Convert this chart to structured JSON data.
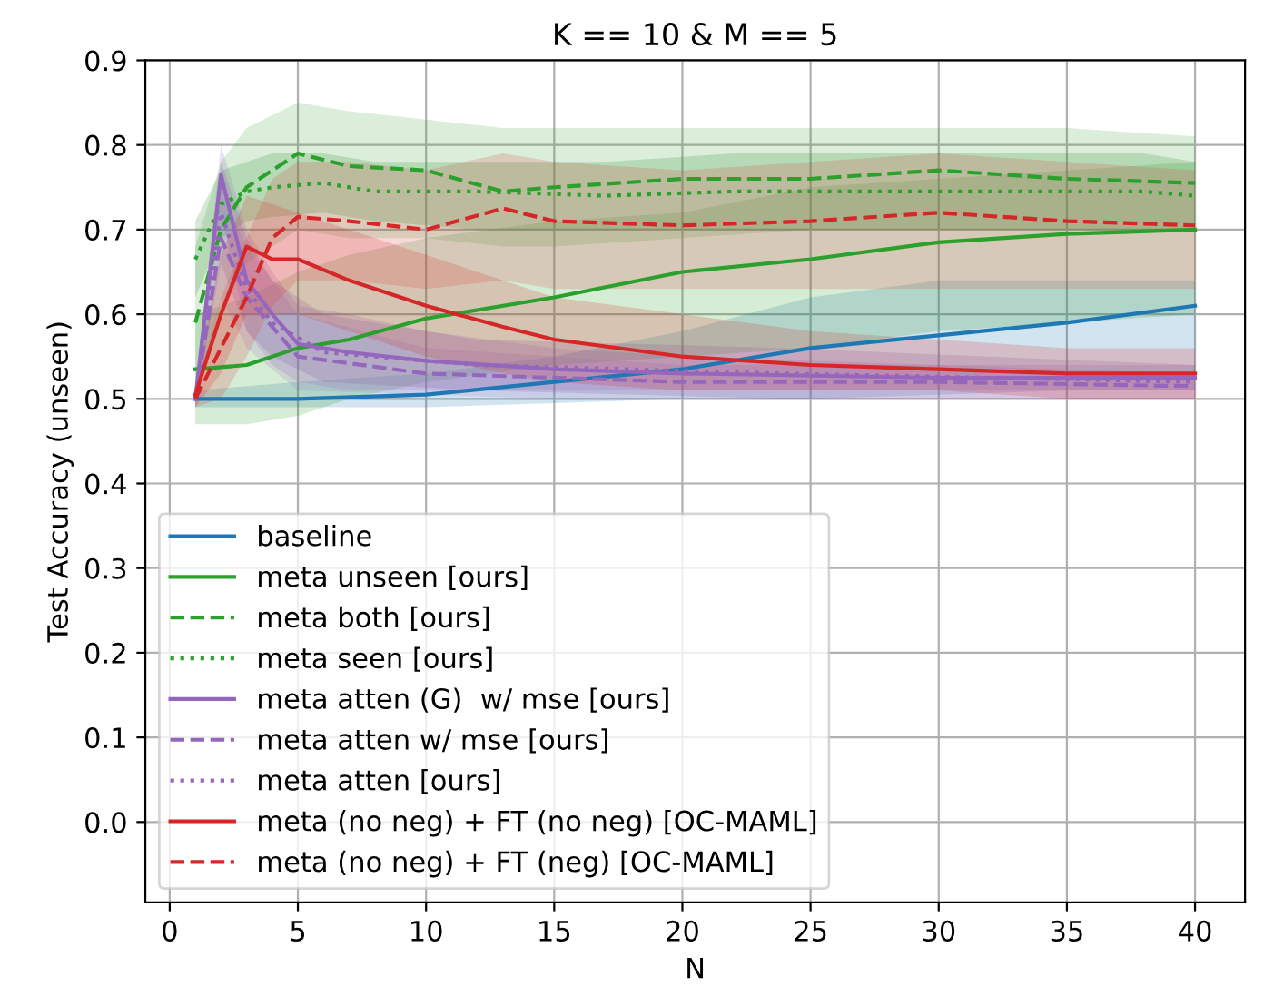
{
  "chart_data": {
    "type": "line",
    "title": "K == 10 & M == 5",
    "xlabel": "N",
    "ylabel": "Test Accuracy (unseen)",
    "xlim": [
      -0.95,
      41.95
    ],
    "ylim": [
      -0.095,
      0.9
    ],
    "xticks": [
      0,
      5,
      10,
      15,
      20,
      25,
      30,
      35,
      40
    ],
    "yticks": [
      {
        "value": 0.0,
        "label": "0.0"
      },
      0.1,
      0.2,
      0.3,
      0.4,
      0.5,
      0.6,
      0.7,
      0.8,
      0.9
    ],
    "grid": true,
    "legend": "bottom left",
    "marker": "none",
    "series": [
      {
        "name": "baseline",
        "color": "#1f77b4",
        "line_style": "solid",
        "x": [
          1,
          5,
          10,
          15,
          20,
          25,
          30,
          35,
          40
        ],
        "values": [
          0.5,
          0.5,
          0.505,
          0.52,
          0.535,
          0.56,
          0.575,
          0.59,
          0.61
        ],
        "lower": [
          0.49,
          0.49,
          0.49,
          0.495,
          0.5,
          0.5,
          0.505,
          0.51,
          0.51
        ],
        "upper": [
          0.51,
          0.52,
          0.53,
          0.55,
          0.58,
          0.62,
          0.64,
          0.64,
          0.64
        ]
      },
      {
        "name": "meta unseen [ours]",
        "color": "#2ca02c",
        "line_style": "solid",
        "x": [
          1,
          3,
          5,
          7,
          10,
          15,
          20,
          25,
          30,
          35,
          40
        ],
        "values": [
          0.535,
          0.54,
          0.56,
          0.57,
          0.595,
          0.62,
          0.65,
          0.665,
          0.685,
          0.695,
          0.7
        ],
        "lower": [
          0.47,
          0.47,
          0.48,
          0.5,
          0.52,
          0.54,
          0.55,
          0.56,
          0.58,
          0.59,
          0.6
        ],
        "upper": [
          0.6,
          0.62,
          0.65,
          0.67,
          0.69,
          0.71,
          0.72,
          0.75,
          0.76,
          0.77,
          0.78
        ]
      },
      {
        "name": "meta both [ours]",
        "color": "#2ca02c",
        "line_style": "dashed",
        "x": [
          1,
          2,
          3,
          5,
          7,
          10,
          13,
          15,
          20,
          25,
          30,
          35,
          40
        ],
        "values": [
          0.59,
          0.7,
          0.75,
          0.79,
          0.775,
          0.77,
          0.745,
          0.75,
          0.76,
          0.76,
          0.77,
          0.76,
          0.755
        ],
        "lower": [
          0.5,
          0.6,
          0.66,
          0.7,
          0.69,
          0.69,
          0.68,
          0.68,
          0.69,
          0.7,
          0.7,
          0.7,
          0.7
        ],
        "upper": [
          0.68,
          0.78,
          0.82,
          0.85,
          0.84,
          0.83,
          0.82,
          0.82,
          0.82,
          0.82,
          0.82,
          0.82,
          0.81
        ]
      },
      {
        "name": "meta seen [ours]",
        "color": "#2ca02c",
        "line_style": "dotted",
        "x": [
          1,
          2,
          3,
          4,
          6,
          8,
          12,
          17,
          22,
          27,
          33,
          38,
          40
        ],
        "values": [
          0.665,
          0.73,
          0.745,
          0.75,
          0.755,
          0.745,
          0.745,
          0.74,
          0.745,
          0.745,
          0.745,
          0.745,
          0.74
        ],
        "lower": [
          0.62,
          0.69,
          0.71,
          0.715,
          0.72,
          0.71,
          0.7,
          0.7,
          0.7,
          0.7,
          0.7,
          0.7,
          0.7
        ],
        "upper": [
          0.71,
          0.77,
          0.78,
          0.79,
          0.79,
          0.78,
          0.78,
          0.78,
          0.79,
          0.79,
          0.79,
          0.79,
          0.78
        ]
      },
      {
        "name": "meta atten (G)  w/ mse [ours]",
        "color": "#9467bd",
        "line_style": "solid",
        "x": [
          1,
          2,
          3,
          4,
          5,
          7,
          10,
          15,
          20,
          30,
          40
        ],
        "values": [
          0.5,
          0.765,
          0.64,
          0.6,
          0.565,
          0.555,
          0.545,
          0.535,
          0.53,
          0.525,
          0.525
        ],
        "lower": [
          0.49,
          0.72,
          0.58,
          0.54,
          0.52,
          0.51,
          0.51,
          0.51,
          0.51,
          0.51,
          0.51
        ],
        "upper": [
          0.51,
          0.8,
          0.7,
          0.65,
          0.61,
          0.6,
          0.58,
          0.56,
          0.55,
          0.54,
          0.54
        ]
      },
      {
        "name": "meta atten w/ mse [ours]",
        "color": "#9467bd",
        "line_style": "dashed",
        "x": [
          1,
          2,
          3,
          5,
          10,
          15,
          20,
          30,
          40
        ],
        "values": [
          0.5,
          0.69,
          0.62,
          0.55,
          0.53,
          0.525,
          0.52,
          0.52,
          0.515
        ],
        "lower": [
          0.49,
          0.62,
          0.56,
          0.51,
          0.505,
          0.5,
          0.5,
          0.5,
          0.5
        ],
        "upper": [
          0.51,
          0.75,
          0.68,
          0.6,
          0.56,
          0.55,
          0.54,
          0.54,
          0.53
        ]
      },
      {
        "name": "meta atten [ours]",
        "color": "#9467bd",
        "line_style": "dotted",
        "x": [
          1,
          2,
          3,
          4,
          6,
          12,
          24,
          32,
          40
        ],
        "values": [
          0.5,
          0.72,
          0.63,
          0.59,
          0.555,
          0.54,
          0.53,
          0.525,
          0.52
        ],
        "lower": [
          0.49,
          0.66,
          0.58,
          0.55,
          0.52,
          0.51,
          0.5,
          0.5,
          0.5
        ],
        "upper": [
          0.51,
          0.78,
          0.69,
          0.64,
          0.6,
          0.57,
          0.56,
          0.55,
          0.54
        ]
      },
      {
        "name": "meta (no neg) + FT (no neg) [OC-MAML]",
        "color": "#d62728",
        "line_style": "solid",
        "x": [
          1,
          2,
          3,
          4,
          5,
          7,
          10,
          13,
          15,
          20,
          25,
          30,
          35,
          40
        ],
        "values": [
          0.505,
          0.6,
          0.68,
          0.665,
          0.665,
          0.64,
          0.61,
          0.585,
          0.57,
          0.55,
          0.54,
          0.535,
          0.53,
          0.53
        ],
        "lower": [
          0.49,
          0.53,
          0.6,
          0.6,
          0.6,
          0.58,
          0.55,
          0.53,
          0.52,
          0.51,
          0.51,
          0.51,
          0.5,
          0.5
        ],
        "upper": [
          0.52,
          0.67,
          0.74,
          0.73,
          0.72,
          0.7,
          0.67,
          0.64,
          0.62,
          0.6,
          0.58,
          0.57,
          0.56,
          0.56
        ]
      },
      {
        "name": "meta (no neg) + FT (neg) [OC-MAML]",
        "color": "#d62728",
        "line_style": "dashed",
        "x": [
          1,
          2,
          3,
          4,
          5,
          7,
          10,
          13,
          15,
          20,
          25,
          30,
          35,
          40
        ],
        "values": [
          0.5,
          0.56,
          0.62,
          0.69,
          0.715,
          0.71,
          0.7,
          0.725,
          0.71,
          0.705,
          0.71,
          0.72,
          0.71,
          0.705
        ],
        "lower": [
          0.49,
          0.5,
          0.55,
          0.61,
          0.64,
          0.64,
          0.63,
          0.64,
          0.63,
          0.63,
          0.63,
          0.63,
          0.63,
          0.63
        ],
        "upper": [
          0.51,
          0.62,
          0.69,
          0.76,
          0.78,
          0.78,
          0.77,
          0.79,
          0.78,
          0.77,
          0.78,
          0.79,
          0.78,
          0.77
        ]
      }
    ]
  }
}
